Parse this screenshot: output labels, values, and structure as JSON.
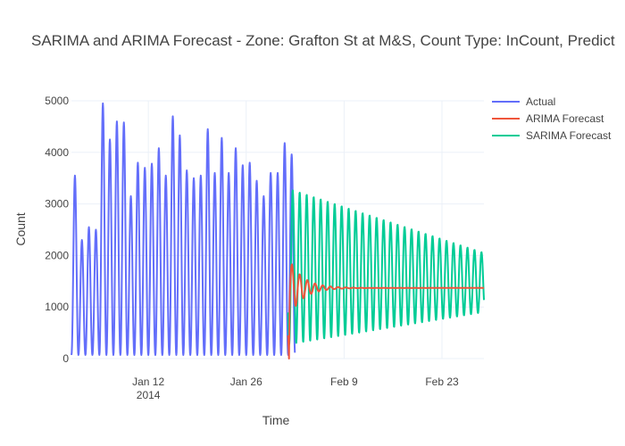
{
  "chart_data": {
    "type": "line",
    "title": "SARIMA and ARIMA Forecast - Zone: Grafton St at M&S, Count Type: InCount, Predict",
    "xlabel": "Time",
    "ylabel": "Count",
    "ylim": [
      0,
      5000
    ],
    "xlim": [
      "2014-01-01",
      "2014-03-01"
    ],
    "y_ticks": [
      0,
      1000,
      2000,
      3000,
      4000,
      5000
    ],
    "x_ticks": [
      {
        "date": "2014-01-12",
        "label": "Jan 12",
        "sublabel": "2014"
      },
      {
        "date": "2014-01-26",
        "label": "Jan 26",
        "sublabel": ""
      },
      {
        "date": "2014-02-09",
        "label": "Feb 9",
        "sublabel": ""
      },
      {
        "date": "2014-02-23",
        "label": "Feb 23",
        "sublabel": ""
      }
    ],
    "legend_position": "top-right",
    "series": [
      {
        "name": "Actual",
        "color": "#636efa",
        "start": "2014-01-01",
        "end": "2014-02-01",
        "cycle_days": 1,
        "daily_peaks": [
          3550,
          2300,
          2550,
          2500,
          4950,
          4250,
          4600,
          4580,
          3150,
          3800,
          3700,
          3780,
          4080,
          3550,
          4700,
          4330,
          3650,
          3500,
          3550,
          4450,
          3600,
          4280,
          3600,
          4080,
          3750,
          3800,
          3450,
          3150,
          3600,
          3600,
          4180,
          3960
        ],
        "trough": 70,
        "note_peaks": "daily maxima read from the chart"
      },
      {
        "name": "ARIMA Forecast",
        "color": "#ef553b",
        "start": "2014-02-01",
        "end": "2014-03-01",
        "initial": 0,
        "steady_value": 1370,
        "oscillation_start_amplitude": 600,
        "oscillation_period_days": 1.1,
        "damping_days": 2.0
      },
      {
        "name": "SARIMA Forecast",
        "color": "#00cc96",
        "start": "2014-02-01",
        "end": "2014-03-01",
        "cycle_days": 1,
        "peak_start": 3300,
        "peak_end": 2050,
        "trough_start": 270,
        "trough_end": 900
      }
    ]
  }
}
